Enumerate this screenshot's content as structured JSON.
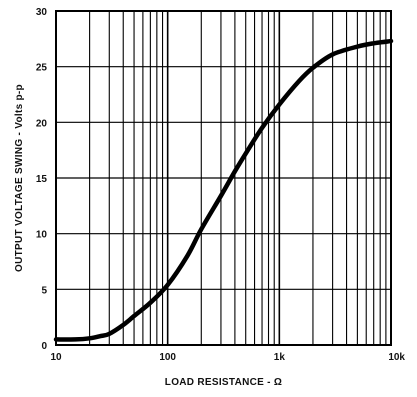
{
  "chart_data": {
    "type": "line",
    "xscale": "log",
    "xlim": [
      10,
      10000
    ],
    "ylim": [
      0,
      30
    ],
    "xlabel": "LOAD RESISTANCE - Ω",
    "ylabel": "OUTPUT VOLTAGE SWING - Volts p-p",
    "x_tick_values": [
      10,
      100,
      1000,
      10000
    ],
    "x_tick_labels": [
      "10",
      "100",
      "1k",
      "10k"
    ],
    "y_tick_values": [
      0,
      5,
      10,
      15,
      20,
      25,
      30
    ],
    "y_tick_labels": [
      "0",
      "5",
      "10",
      "15",
      "20",
      "25",
      "30"
    ],
    "grid": true,
    "line_color": "#000000",
    "series": [
      {
        "x": [
          10,
          15,
          20,
          25,
          30,
          40,
          50,
          70,
          100,
          150,
          200,
          300,
          400,
          500,
          700,
          1000,
          1500,
          2000,
          3000,
          5000,
          7000,
          10000
        ],
        "y": [
          0.5,
          0.5,
          0.6,
          0.8,
          1.0,
          1.8,
          2.6,
          3.8,
          5.4,
          8.0,
          10.4,
          13.4,
          15.6,
          17.2,
          19.5,
          21.6,
          23.7,
          24.9,
          26.1,
          26.8,
          27.1,
          27.3
        ]
      }
    ]
  }
}
